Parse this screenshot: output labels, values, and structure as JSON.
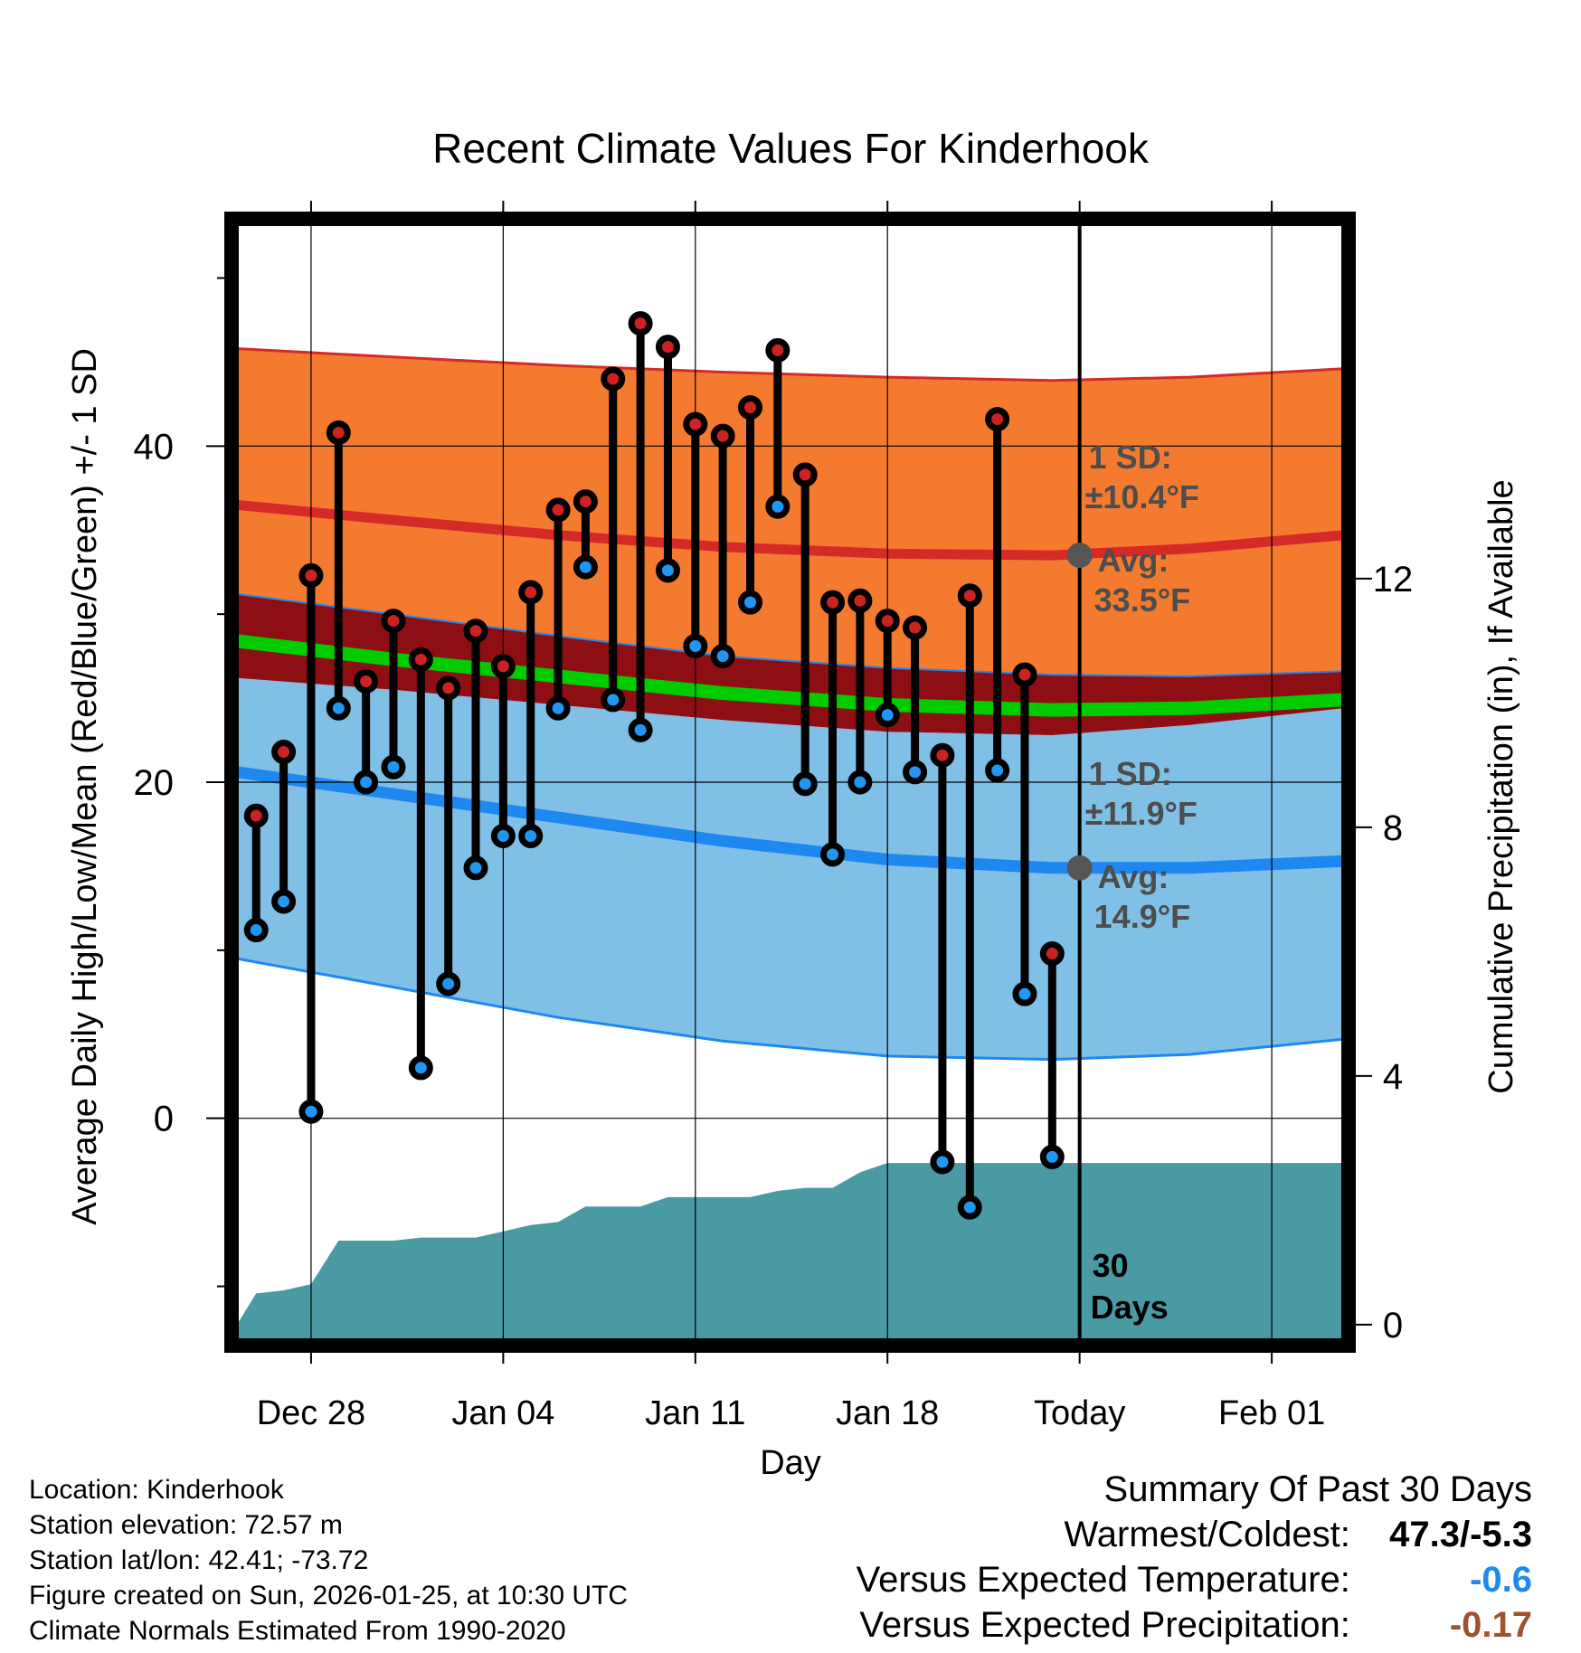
{
  "chart_data": {
    "type": "line",
    "title": "Recent Climate Values For Kinderhook",
    "xlabel": "Day",
    "ylabel": "Average Daily High/Low/Mean (Red/Blue/Green) +/- 1 SD",
    "y2label": "Cumulative Precipitation (in), If Available",
    "ylim": [
      -13.2,
      53.2
    ],
    "y2lim": [
      -0.25,
      17.7
    ],
    "x_tick_labels": [
      "Dec 28",
      "Jan 04",
      "Jan 11",
      "Jan 18",
      "Today",
      "Feb 01"
    ],
    "x_tick_days": [
      27,
      34,
      41,
      48,
      55,
      62
    ],
    "y_ticks": [
      0,
      20,
      40
    ],
    "y2_ticks": [
      0,
      4,
      8,
      12
    ],
    "xlim": [
      24.3,
      64.6
    ],
    "today_day": 55,
    "days": [
      25,
      26,
      27,
      28,
      29,
      30,
      31,
      32,
      33,
      34,
      35,
      36,
      37,
      38,
      39,
      40,
      41,
      42,
      43,
      44,
      45,
      46,
      47,
      48,
      49,
      50,
      51,
      52,
      53,
      54
    ],
    "highs": [
      18.0,
      21.8,
      32.3,
      40.8,
      26.0,
      29.6,
      27.3,
      25.6,
      29.0,
      26.9,
      31.3,
      36.2,
      36.7,
      44.0,
      47.3,
      45.9,
      41.3,
      40.6,
      42.3,
      45.7,
      38.3,
      30.7,
      30.8,
      29.6,
      29.2,
      21.6,
      31.1,
      41.6,
      26.4,
      9.8
    ],
    "lows": [
      11.2,
      12.9,
      0.4,
      24.4,
      20.0,
      20.9,
      3.0,
      8.0,
      14.9,
      16.8,
      16.8,
      24.4,
      32.8,
      24.9,
      23.1,
      32.6,
      28.1,
      27.5,
      30.7,
      36.4,
      19.9,
      15.7,
      20.0,
      24.0,
      20.6,
      -2.6,
      -5.3,
      20.7,
      7.4,
      -2.3
    ],
    "normal_high_mean": [
      36.5,
      35.6,
      34.7,
      34.0,
      33.6,
      33.5,
      33.9,
      34.7
    ],
    "normal_high_minus_sd": [
      31.2,
      30.0,
      28.7,
      27.5,
      26.8,
      26.4,
      26.3,
      26.6
    ],
    "normal_high_plus_sd": [
      45.8,
      45.3,
      44.8,
      44.4,
      44.1,
      43.9,
      44.1,
      44.6
    ],
    "normal_mean": [
      28.4,
      27.3,
      26.3,
      25.3,
      24.6,
      24.3,
      24.4,
      24.9
    ],
    "normal_low_mean": [
      20.6,
      19.3,
      17.9,
      16.5,
      15.4,
      14.9,
      14.9,
      15.3
    ],
    "normal_low_minus_sd": [
      9.5,
      7.8,
      6.0,
      4.6,
      3.7,
      3.5,
      3.8,
      4.7
    ],
    "normal_low_plus_sd": [
      26.2,
      25.5,
      24.6,
      23.7,
      23.0,
      22.8,
      23.4,
      24.4
    ],
    "normal_days": [
      24.3,
      30,
      36,
      42,
      48,
      54,
      59,
      64.6
    ],
    "precip_days": [
      24.3,
      25,
      26,
      27,
      28,
      29,
      30,
      31,
      32,
      33,
      34,
      35,
      36,
      37,
      38,
      39,
      40,
      41,
      42,
      43,
      44,
      45,
      46,
      47,
      48,
      49,
      50,
      51,
      52,
      53,
      54,
      55,
      64.6
    ],
    "precip_cumulative": [
      0,
      0.5,
      0.55,
      0.65,
      1.35,
      1.35,
      1.35,
      1.4,
      1.4,
      1.4,
      1.5,
      1.6,
      1.65,
      1.9,
      1.9,
      1.9,
      2.05,
      2.05,
      2.05,
      2.05,
      2.15,
      2.2,
      2.2,
      2.45,
      2.6,
      2.6,
      2.6,
      2.6,
      2.6,
      2.6,
      2.6,
      2.6,
      2.6
    ],
    "high_sd_label": "1 SD:",
    "high_sd_value": "±10.4°F",
    "high_avg_label": "Avg:",
    "high_avg_value": "33.5°F",
    "low_sd_label": "1 SD:",
    "low_sd_value": "±11.9°F",
    "low_avg_label": "Avg:",
    "low_avg_value": "14.9°F",
    "high_avg_marker": 33.5,
    "low_avg_marker": 14.9,
    "days_label_1": "30",
    "days_label_2": "Days",
    "colors": {
      "high_band": "#f47a30",
      "high_line": "#d62a26",
      "mean_band": "#8d0f13",
      "mean_line": "#00cc00",
      "low_band": "#80bfe6",
      "low_line": "#1f88f0",
      "precip": "#4a9aa3",
      "marker_high": "#cc2222",
      "marker_low": "#2196f3",
      "avg_marker": "#555555",
      "annotation_text": "#4d4d4d"
    }
  },
  "footer": {
    "location": "Location: Kinderhook",
    "elevation": "Station elevation: 72.57 m",
    "latlon": "Station lat/lon: 42.41; -73.72",
    "created": "Figure created on Sun, 2026-01-25, at 10:30 UTC",
    "normals": "Climate Normals Estimated From 1990-2020"
  },
  "summary": {
    "title": "Summary Of Past 30 Days",
    "warmest_label": "Warmest/Coldest:",
    "warmest_value": "47.3/-5.3",
    "temp_label": "Versus Expected Temperature:",
    "temp_value": "-0.6",
    "temp_color": "#1f88f0",
    "precip_label": "Versus Expected Precipitation:",
    "precip_value": "-0.17",
    "precip_color": "#a0522d"
  }
}
